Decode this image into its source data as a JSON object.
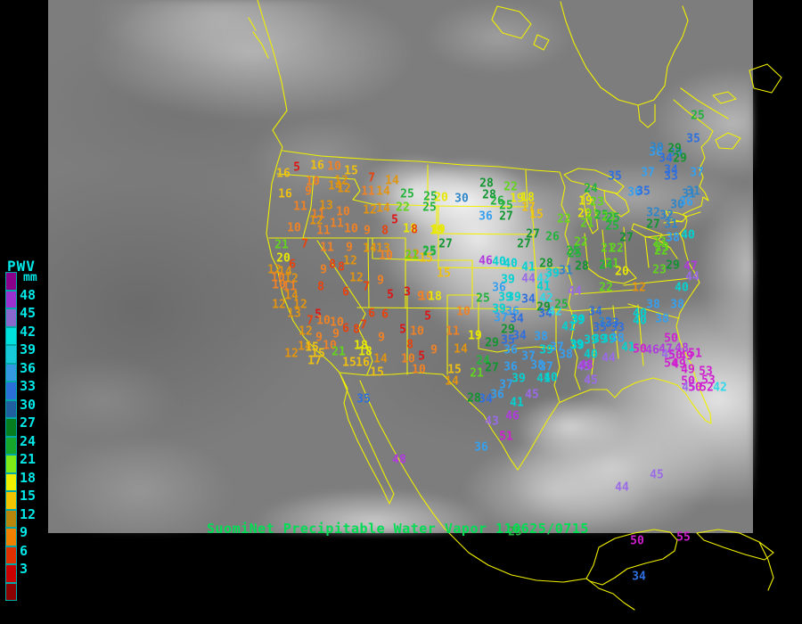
{
  "caption": "SuomiNet Precipitable Water Vapor 110625/0715",
  "legend": {
    "title": "PWV",
    "unit": "mm",
    "labels": [
      "48",
      "45",
      "42",
      "39",
      "36",
      "33",
      "30",
      "27",
      "24",
      "21",
      "18",
      "15",
      "12",
      "9",
      "6",
      "3"
    ],
    "swatch_colors": [
      "#8b008b",
      "#9b30d0",
      "#8968cd",
      "#00e0dc",
      "#16c8d8",
      "#3398e0",
      "#2a6fd8",
      "#1f5fa0",
      "#067d1e",
      "#16a62c",
      "#7fe817",
      "#eeee00",
      "#f0c400",
      "#b8860b",
      "#f08000",
      "#e03000",
      "#c80000",
      "#8b0000"
    ],
    "label_color": "#00e8e8"
  },
  "map": {
    "outline_color": "#f0f000",
    "background": "#000000",
    "caption_color": "#00dd55"
  },
  "palette": [
    {
      "max": 5,
      "color": "#e01414"
    },
    {
      "max": 8,
      "color": "#e8420e"
    },
    {
      "max": 11,
      "color": "#f08226"
    },
    {
      "max": 14,
      "color": "#e2930f"
    },
    {
      "max": 17,
      "color": "#eec011"
    },
    {
      "max": 20,
      "color": "#e8e800"
    },
    {
      "max": 23,
      "color": "#62d41f"
    },
    {
      "max": 26,
      "color": "#23b33c"
    },
    {
      "max": 29,
      "color": "#109530"
    },
    {
      "max": 32,
      "color": "#2e86c8"
    },
    {
      "max": 35,
      "color": "#2e6fe0"
    },
    {
      "max": 38,
      "color": "#35a0f0"
    },
    {
      "max": 41,
      "color": "#00d2d2"
    },
    {
      "max": 42,
      "color": "#2fd8e8"
    },
    {
      "max": 45,
      "color": "#9a6ae8"
    },
    {
      "max": 48,
      "color": "#b03ae0"
    },
    {
      "max": 99,
      "color": "#d01fd0"
    }
  ],
  "stations": [
    [
      333,
      188,
      5
    ],
    [
      318,
      195,
      16
    ],
    [
      356,
      186,
      16
    ],
    [
      375,
      187,
      10
    ],
    [
      394,
      192,
      15
    ],
    [
      417,
      200,
      7
    ],
    [
      440,
      203,
      14
    ],
    [
      351,
      204,
      10
    ],
    [
      383,
      203,
      12
    ],
    [
      376,
      209,
      14
    ],
    [
      386,
      212,
      12
    ],
    [
      413,
      215,
      11
    ],
    [
      430,
      215,
      14
    ],
    [
      346,
      215,
      9
    ],
    [
      320,
      218,
      16
    ],
    [
      337,
      232,
      11
    ],
    [
      366,
      231,
      13
    ],
    [
      457,
      218,
      25
    ],
    [
      452,
      233,
      22
    ],
    [
      482,
      233,
      25
    ],
    [
      330,
      256,
      10
    ],
    [
      357,
      241,
      11
    ],
    [
      355,
      248,
      12
    ],
    [
      385,
      238,
      10
    ],
    [
      378,
      251,
      11
    ],
    [
      415,
      236,
      12
    ],
    [
      430,
      234,
      14
    ],
    [
      443,
      247,
      5
    ],
    [
      363,
      259,
      11
    ],
    [
      394,
      257,
      10
    ],
    [
      412,
      259,
      9
    ],
    [
      432,
      259,
      8
    ],
    [
      460,
      257,
      18
    ],
    [
      490,
      259,
      19
    ],
    [
      316,
      275,
      21
    ],
    [
      342,
      274,
      7
    ],
    [
      367,
      278,
      11
    ],
    [
      392,
      278,
      9
    ],
    [
      415,
      279,
      14
    ],
    [
      430,
      279,
      13
    ],
    [
      433,
      287,
      10
    ],
    [
      463,
      286,
      12
    ],
    [
      482,
      283,
      25
    ],
    [
      318,
      290,
      20
    ],
    [
      393,
      293,
      12
    ],
    [
      373,
      297,
      8
    ],
    [
      328,
      297,
      6
    ],
    [
      308,
      303,
      12
    ],
    [
      320,
      305,
      14
    ],
    [
      312,
      312,
      10
    ],
    [
      327,
      313,
      12
    ],
    [
      363,
      303,
      9
    ],
    [
      383,
      300,
      8
    ],
    [
      360,
      322,
      8
    ],
    [
      400,
      312,
      12
    ],
    [
      411,
      322,
      7
    ],
    [
      427,
      315,
      9
    ],
    [
      388,
      328,
      6
    ],
    [
      313,
      320,
      10
    ],
    [
      325,
      322,
      11
    ],
    [
      327,
      332,
      14
    ],
    [
      438,
      331,
      5
    ],
    [
      457,
      328,
      3
    ],
    [
      313,
      342,
      12
    ],
    [
      337,
      342,
      12
    ],
    [
      330,
      352,
      13
    ],
    [
      357,
      353,
      5
    ],
    [
      348,
      360,
      7
    ],
    [
      363,
      360,
      10
    ],
    [
      378,
      362,
      10
    ],
    [
      417,
      352,
      6
    ],
    [
      432,
      353,
      6
    ],
    [
      408,
      365,
      7
    ],
    [
      377,
      375,
      9
    ],
    [
      388,
      369,
      6
    ],
    [
      400,
      370,
      8
    ],
    [
      343,
      372,
      12
    ],
    [
      358,
      379,
      9
    ],
    [
      428,
      379,
      9
    ],
    [
      452,
      370,
      5
    ],
    [
      468,
      372,
      10
    ],
    [
      460,
      387,
      8
    ],
    [
      342,
      389,
      14
    ],
    [
      350,
      390,
      15
    ],
    [
      370,
      388,
      10
    ],
    [
      405,
      388,
      18
    ],
    [
      410,
      395,
      18
    ],
    [
      380,
      395,
      21
    ],
    [
      357,
      397,
      15
    ],
    [
      327,
      397,
      12
    ],
    [
      353,
      405,
      17
    ],
    [
      392,
      407,
      15
    ],
    [
      407,
      407,
      16
    ],
    [
      427,
      403,
      14
    ],
    [
      458,
      403,
      10
    ],
    [
      423,
      418,
      15
    ],
    [
      470,
      415,
      10
    ],
    [
      408,
      448,
      35
    ],
    [
      448,
      516,
      48
    ],
    [
      546,
      206,
      28
    ],
    [
      549,
      219,
      28
    ],
    [
      573,
      210,
      22
    ],
    [
      483,
      221,
      25
    ],
    [
      495,
      222,
      20
    ],
    [
      518,
      223,
      30
    ],
    [
      558,
      226,
      26
    ],
    [
      580,
      223,
      19
    ],
    [
      592,
      222,
      18
    ],
    [
      568,
      231,
      25
    ],
    [
      545,
      243,
      36
    ],
    [
      568,
      243,
      27
    ],
    [
      593,
      233,
      17
    ],
    [
      602,
      241,
      15
    ],
    [
      492,
      258,
      19
    ],
    [
      465,
      258,
      8
    ],
    [
      500,
      274,
      27
    ],
    [
      482,
      282,
      25
    ],
    [
      462,
      287,
      21
    ],
    [
      478,
      290,
      15
    ],
    [
      598,
      263,
      27
    ],
    [
      620,
      266,
      26
    ],
    [
      588,
      274,
      27
    ],
    [
      545,
      293,
      46
    ],
    [
      560,
      294,
      40
    ],
    [
      573,
      296,
      40
    ],
    [
      593,
      300,
      41
    ],
    [
      570,
      314,
      39
    ],
    [
      620,
      307,
      39
    ],
    [
      610,
      313,
      42
    ],
    [
      593,
      313,
      44
    ],
    [
      613,
      296,
      28
    ],
    [
      645,
      285,
      25
    ],
    [
      560,
      323,
      36
    ],
    [
      610,
      322,
      41
    ],
    [
      498,
      307,
      15
    ],
    [
      472,
      333,
      9
    ],
    [
      478,
      333,
      10
    ],
    [
      488,
      333,
      18
    ],
    [
      542,
      335,
      25
    ],
    [
      567,
      334,
      39
    ],
    [
      577,
      334,
      39
    ],
    [
      520,
      350,
      10
    ],
    [
      480,
      355,
      5
    ],
    [
      560,
      347,
      39
    ],
    [
      575,
      350,
      36
    ],
    [
      562,
      357,
      37
    ],
    [
      580,
      358,
      34
    ],
    [
      593,
      336,
      34
    ],
    [
      613,
      335,
      42
    ],
    [
      610,
      345,
      29
    ],
    [
      612,
      352,
      34
    ],
    [
      623,
      350,
      42
    ],
    [
      630,
      342,
      25
    ],
    [
      645,
      327,
      44
    ],
    [
      570,
      370,
      29
    ],
    [
      583,
      377,
      34
    ],
    [
      570,
      382,
      35
    ],
    [
      573,
      393,
      36
    ],
    [
      607,
      378,
      38
    ],
    [
      508,
      372,
      11
    ],
    [
      533,
      377,
      19
    ],
    [
      552,
      385,
      29
    ],
    [
      517,
      392,
      14
    ],
    [
      487,
      393,
      9
    ],
    [
      473,
      400,
      5
    ],
    [
      542,
      405,
      24
    ],
    [
      552,
      413,
      27
    ],
    [
      573,
      412,
      36
    ],
    [
      593,
      400,
      37
    ],
    [
      603,
      410,
      38
    ],
    [
      613,
      412,
      37
    ],
    [
      613,
      393,
      39
    ],
    [
      625,
      390,
      37
    ],
    [
      635,
      398,
      38
    ],
    [
      647,
      387,
      39
    ],
    [
      638,
      367,
      41
    ],
    [
      648,
      360,
      39
    ],
    [
      510,
      415,
      15
    ],
    [
      535,
      419,
      21
    ],
    [
      507,
      428,
      14
    ],
    [
      582,
      425,
      39
    ],
    [
      568,
      432,
      37
    ],
    [
      610,
      425,
      41
    ],
    [
      618,
      424,
      40
    ],
    [
      558,
      443,
      36
    ],
    [
      545,
      448,
      34
    ],
    [
      532,
      447,
      28
    ],
    [
      580,
      452,
      41
    ],
    [
      597,
      443,
      45
    ],
    [
      552,
      473,
      43
    ],
    [
      575,
      467,
      46
    ],
    [
      663,
      398,
      40
    ],
    [
      655,
      412,
      45
    ],
    [
      568,
      490,
      51
    ],
    [
      540,
      502,
      36
    ],
    [
      690,
      198,
      35
    ],
    [
      727,
      194,
      37
    ],
    [
      736,
      171,
      38
    ],
    [
      758,
      172,
      30
    ],
    [
      747,
      178,
      34
    ],
    [
      763,
      178,
      29
    ],
    [
      753,
      191,
      34
    ],
    [
      753,
      198,
      33
    ],
    [
      782,
      194,
      37
    ],
    [
      663,
      212,
      24
    ],
    [
      712,
      216,
      36
    ],
    [
      722,
      215,
      35
    ],
    [
      657,
      226,
      19
    ],
    [
      670,
      227,
      23
    ],
    [
      656,
      240,
      20
    ],
    [
      665,
      241,
      23
    ],
    [
      675,
      242,
      25
    ],
    [
      683,
      244,
      23
    ],
    [
      688,
      245,
      25
    ],
    [
      633,
      246,
      22
    ],
    [
      659,
      251,
      21
    ],
    [
      687,
      254,
      25
    ],
    [
      733,
      239,
      32
    ],
    [
      748,
      242,
      32
    ],
    [
      753,
      252,
      31
    ],
    [
      733,
      252,
      27
    ],
    [
      760,
      230,
      30
    ],
    [
      773,
      218,
      31
    ],
    [
      770,
      227,
      36
    ],
    [
      772,
      264,
      40
    ],
    [
      755,
      267,
      38
    ],
    [
      740,
      272,
      23
    ],
    [
      743,
      278,
      23
    ],
    [
      742,
      282,
      22
    ],
    [
      652,
      272,
      22
    ],
    [
      643,
      282,
      25
    ],
    [
      703,
      267,
      27
    ],
    [
      682,
      279,
      21
    ],
    [
      692,
      279,
      22
    ],
    [
      653,
      299,
      28
    ],
    [
      687,
      296,
      21
    ],
    [
      680,
      298,
      24
    ],
    [
      698,
      305,
      20
    ],
    [
      740,
      303,
      23
    ],
    [
      755,
      298,
      29
    ],
    [
      775,
      299,
      47
    ],
    [
      635,
      304,
      31
    ],
    [
      778,
      156,
      35
    ],
    [
      783,
      130,
      25
    ],
    [
      737,
      166,
      30
    ],
    [
      757,
      167,
      29
    ],
    [
      778,
      215,
      31
    ],
    [
      777,
      311,
      44
    ],
    [
      680,
      323,
      22
    ],
    [
      717,
      323,
      12
    ],
    [
      765,
      323,
      40
    ],
    [
      733,
      342,
      38
    ],
    [
      760,
      342,
      38
    ],
    [
      668,
      350,
      34
    ],
    [
      718,
      352,
      40
    ],
    [
      718,
      360,
      40
    ],
    [
      649,
      359,
      39
    ],
    [
      679,
      362,
      32
    ],
    [
      687,
      363,
      33
    ],
    [
      673,
      368,
      35
    ],
    [
      693,
      368,
      33
    ],
    [
      743,
      358,
      38
    ],
    [
      663,
      382,
      39
    ],
    [
      673,
      381,
      39
    ],
    [
      683,
      381,
      39
    ],
    [
      693,
      380,
      38
    ],
    [
      648,
      388,
      39
    ],
    [
      705,
      390,
      41
    ],
    [
      718,
      392,
      50
    ],
    [
      753,
      380,
      50
    ],
    [
      732,
      393,
      46
    ],
    [
      747,
      392,
      47
    ],
    [
      765,
      391,
      48
    ],
    [
      683,
      402,
      44
    ],
    [
      750,
      398,
      45
    ],
    [
      758,
      399,
      50
    ],
    [
      770,
      400,
      49
    ],
    [
      780,
      397,
      51
    ],
    [
      753,
      408,
      54
    ],
    [
      762,
      409,
      49
    ],
    [
      772,
      415,
      49
    ],
    [
      792,
      417,
      53
    ],
    [
      658,
      410,
      48
    ],
    [
      663,
      427,
      45
    ],
    [
      772,
      428,
      50
    ],
    [
      773,
      435,
      45
    ],
    [
      780,
      435,
      50
    ],
    [
      793,
      435,
      52
    ],
    [
      795,
      427,
      53
    ],
    [
      808,
      435,
      42
    ],
    [
      715,
      607,
      50
    ],
    [
      767,
      603,
      55
    ],
    [
      717,
      647,
      34
    ],
    [
      698,
      547,
      44
    ],
    [
      737,
      533,
      45
    ],
    [
      578,
      597,
      25
    ]
  ]
}
